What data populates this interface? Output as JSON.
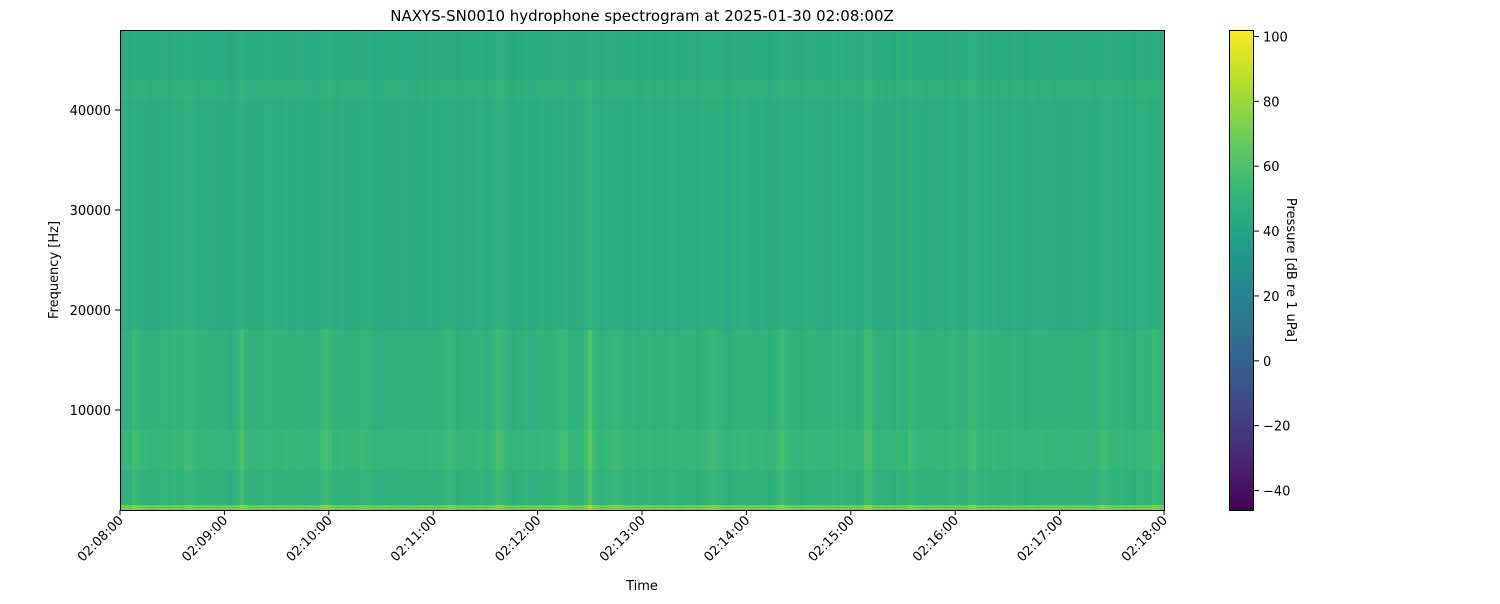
{
  "chart_data": {
    "type": "heatmap",
    "title": "NAXYS-SN0010 hydrophone spectrogram at 2025-01-30 02:08:00Z",
    "xlabel": "Time",
    "ylabel": "Frequency [Hz]",
    "xlim": [
      "02:08:00",
      "02:18:00"
    ],
    "ylim": [
      0,
      48000
    ],
    "x_ticks": [
      "02:08:00",
      "02:09:00",
      "02:10:00",
      "02:11:00",
      "02:12:00",
      "02:13:00",
      "02:14:00",
      "02:15:00",
      "02:16:00",
      "02:17:00",
      "02:18:00"
    ],
    "y_ticks": [
      10000,
      20000,
      30000,
      40000
    ],
    "y_tick_labels": [
      "10000",
      "20000",
      "30000",
      "40000"
    ],
    "colorbar": {
      "label": "Pressure [dB re 1 uPa]",
      "colormap": "viridis",
      "range": [
        -46,
        102
      ],
      "ticks": [
        100,
        80,
        60,
        40,
        20,
        0,
        -20,
        -40
      ],
      "tick_labels": [
        "100",
        "80",
        "60",
        "40",
        "20",
        "0",
        "−20",
        "−40"
      ]
    },
    "frequency_bands_hz": [
      {
        "from": 0,
        "to": 500,
        "level_db": 68
      },
      {
        "from": 500,
        "to": 4000,
        "level_db": 49
      },
      {
        "from": 4000,
        "to": 8000,
        "level_db": 52
      },
      {
        "from": 8000,
        "to": 18000,
        "level_db": 49
      },
      {
        "from": 18000,
        "to": 41000,
        "level_db": 46
      },
      {
        "from": 41000,
        "to": 43000,
        "level_db": 48
      },
      {
        "from": 43000,
        "to": 48000,
        "level_db": 45
      }
    ],
    "transients": [
      {
        "time": "02:08:09",
        "boost_db": 6
      },
      {
        "time": "02:08:40",
        "boost_db": 5
      },
      {
        "time": "02:09:10",
        "boost_db": 6
      },
      {
        "time": "02:09:58",
        "boost_db": 9
      },
      {
        "time": "02:10:20",
        "boost_db": 6
      },
      {
        "time": "02:11:10",
        "boost_db": 6
      },
      {
        "time": "02:11:38",
        "boost_db": 7
      },
      {
        "time": "02:12:15",
        "boost_db": 7
      },
      {
        "time": "02:12:30",
        "boost_db": 12
      },
      {
        "time": "02:12:45",
        "boost_db": 7
      },
      {
        "time": "02:13:42",
        "boost_db": 5
      },
      {
        "time": "02:14:20",
        "boost_db": 8
      },
      {
        "time": "02:15:10",
        "boost_db": 8
      },
      {
        "time": "02:15:35",
        "boost_db": 5
      },
      {
        "time": "02:16:10",
        "boost_db": 6
      },
      {
        "time": "02:17:25",
        "boost_db": 6
      },
      {
        "time": "02:17:55",
        "boost_db": 7
      }
    ]
  }
}
